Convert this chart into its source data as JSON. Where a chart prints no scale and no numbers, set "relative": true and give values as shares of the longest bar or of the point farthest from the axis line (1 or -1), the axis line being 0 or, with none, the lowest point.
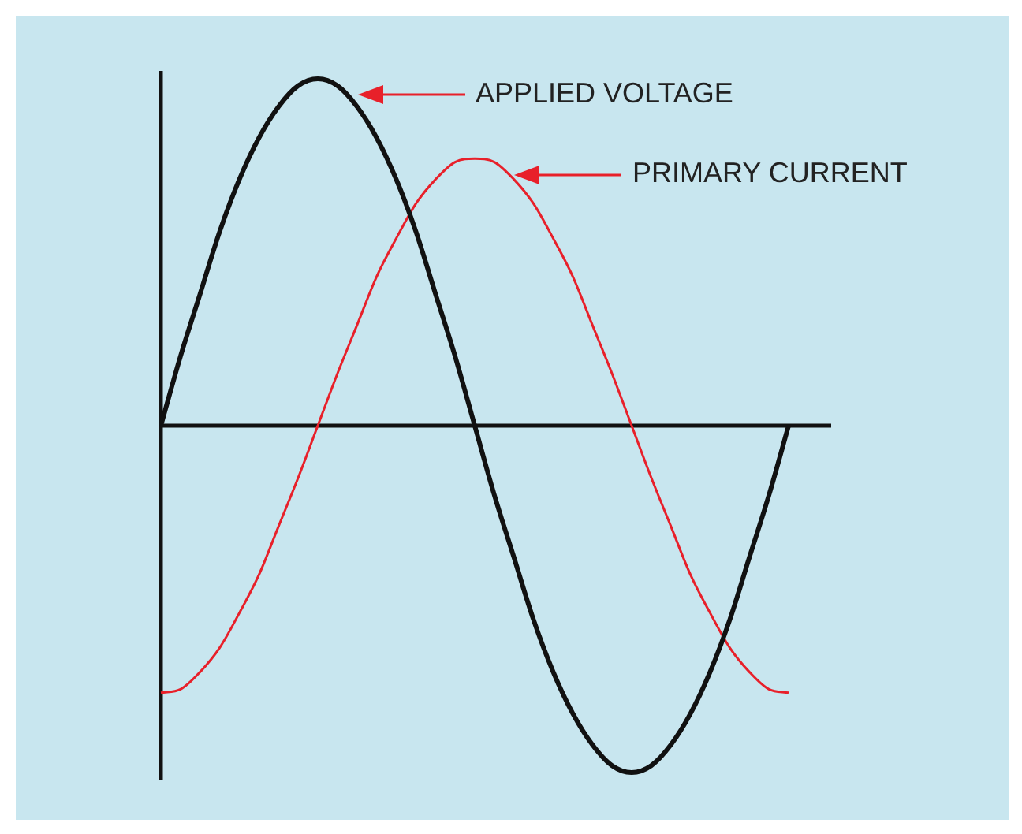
{
  "chart_data": {
    "type": "line",
    "relative": true,
    "categories": [
      null,
      null,
      null,
      null,
      null,
      null,
      null,
      null,
      null,
      null,
      null,
      null,
      null,
      null,
      null,
      null,
      null,
      null,
      null,
      null,
      null,
      null,
      null,
      null,
      null,
      null,
      null,
      null,
      null,
      null,
      null,
      null,
      null
    ],
    "series": [
      {
        "color": "#111111",
        "values": [
          0,
          0.2,
          0.38,
          0.56,
          0.71,
          0.83,
          0.92,
          0.98,
          1,
          0.98,
          0.92,
          0.83,
          0.71,
          0.56,
          0.38,
          0.2,
          0,
          -0.2,
          -0.38,
          -0.56,
          -0.71,
          -0.83,
          -0.92,
          -0.98,
          -1,
          -0.98,
          -0.92,
          -0.83,
          -0.71,
          -0.56,
          -0.38,
          -0.2,
          0
        ]
      },
      {
        "color": "#e8202a",
        "values": [
          -0.77,
          -0.76,
          -0.71,
          -0.64,
          -0.54,
          -0.43,
          -0.29,
          -0.15,
          0,
          0.15,
          0.29,
          0.43,
          0.54,
          0.64,
          0.71,
          0.76,
          0.77,
          0.76,
          0.71,
          0.64,
          0.54,
          0.43,
          0.29,
          0.15,
          0,
          -0.15,
          -0.29,
          -0.43,
          -0.54,
          -0.64,
          -0.71,
          -0.76,
          -0.77
        ]
      }
    ],
    "annotations": [
      "APPLIED VOLTAGE",
      "PRIMARY CURRENT"
    ]
  }
}
